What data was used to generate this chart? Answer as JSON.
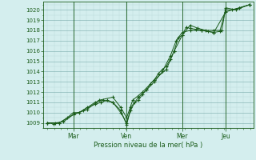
{
  "background_color": "#d4eeee",
  "grid_major_color": "#8ab8b8",
  "grid_minor_color": "#b8d8d8",
  "line_color": "#1a5c1a",
  "ylabel": "Pression niveau de la mer( hPa )",
  "ylim": [
    1008.5,
    1020.8
  ],
  "yticks": [
    1009,
    1010,
    1011,
    1012,
    1013,
    1014,
    1015,
    1016,
    1017,
    1018,
    1019,
    1020
  ],
  "xtick_labels": [
    "Mar",
    "Ven",
    "Mer",
    "Jeu"
  ],
  "xtick_positions": [
    0.13,
    0.4,
    0.68,
    0.9
  ],
  "xlim": [
    -0.02,
    1.04
  ],
  "series": [
    [
      0.0,
      1009.0,
      0.03,
      1008.9,
      0.06,
      1009.0,
      0.1,
      1009.5,
      0.13,
      1010.0,
      0.16,
      1010.0,
      0.2,
      1010.5,
      0.24,
      1010.8,
      0.27,
      1011.0,
      0.3,
      1011.2,
      0.33,
      1011.0,
      0.37,
      1010.0,
      0.4,
      1009.0,
      0.42,
      1010.2,
      0.44,
      1011.0,
      0.46,
      1011.2,
      0.48,
      1011.8,
      0.5,
      1012.2,
      0.52,
      1012.8,
      0.54,
      1013.2,
      0.56,
      1013.8,
      0.58,
      1014.2,
      0.6,
      1014.5,
      0.62,
      1015.2,
      0.64,
      1016.0,
      0.66,
      1017.3,
      0.68,
      1017.5,
      0.7,
      1018.3,
      0.72,
      1018.2,
      0.75,
      1018.1,
      0.78,
      1018.0,
      0.81,
      1017.9,
      0.84,
      1017.8,
      0.87,
      1017.9,
      0.9,
      1020.0,
      0.93,
      1020.0,
      0.97,
      1020.2,
      1.02,
      1020.5
    ],
    [
      0.0,
      1009.0,
      0.04,
      1009.0,
      0.08,
      1009.1,
      0.13,
      1009.8,
      0.18,
      1010.2,
      0.24,
      1011.0,
      0.28,
      1011.2,
      0.33,
      1011.0,
      0.37,
      1010.2,
      0.4,
      1008.8,
      0.42,
      1010.5,
      0.46,
      1011.5,
      0.5,
      1012.2,
      0.54,
      1013.0,
      0.58,
      1014.0,
      0.62,
      1015.5,
      0.65,
      1017.0,
      0.68,
      1017.8,
      0.72,
      1018.0,
      0.78,
      1018.0,
      0.84,
      1017.8,
      0.9,
      1019.8,
      0.97,
      1020.2,
      1.02,
      1020.5
    ],
    [
      0.0,
      1009.0,
      0.06,
      1009.0,
      0.13,
      1009.8,
      0.2,
      1010.3,
      0.26,
      1011.2,
      0.33,
      1011.5,
      0.37,
      1010.5,
      0.4,
      1009.5,
      0.43,
      1011.2,
      0.48,
      1012.0,
      0.54,
      1013.2,
      0.6,
      1014.2,
      0.64,
      1016.0,
      0.68,
      1017.5,
      0.72,
      1018.5,
      0.76,
      1018.2,
      0.8,
      1018.0,
      0.84,
      1018.0,
      0.88,
      1018.0,
      0.9,
      1020.2,
      0.95,
      1020.0,
      1.02,
      1020.5
    ]
  ]
}
